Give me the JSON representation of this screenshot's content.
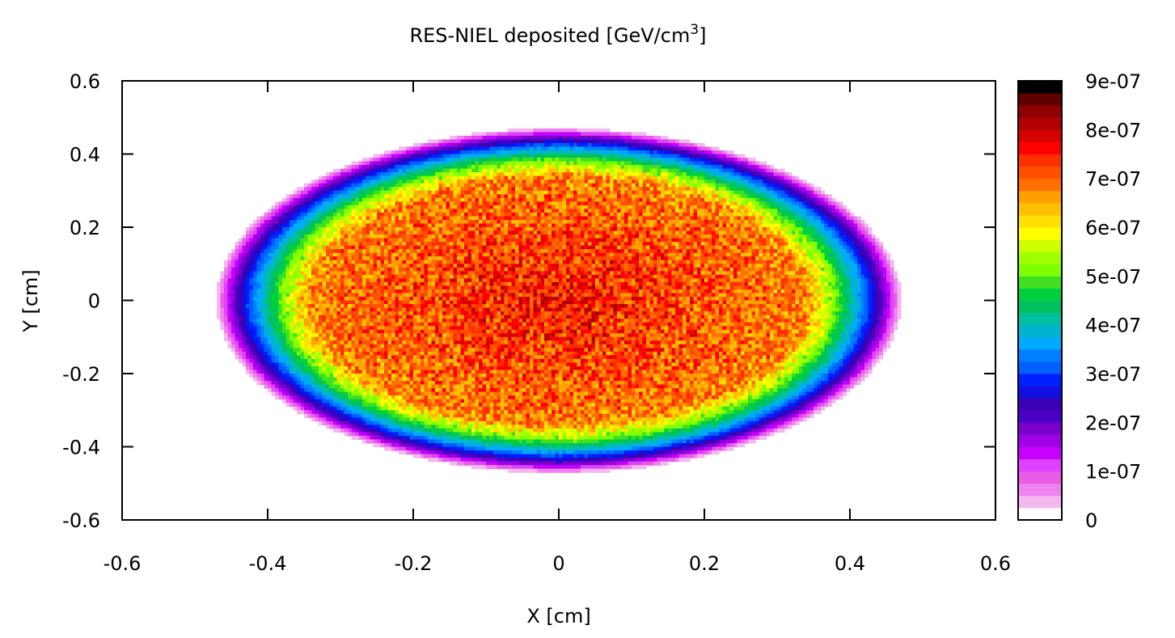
{
  "chart_data": {
    "type": "heatmap",
    "title": "RES-NIEL deposited [GeV/cm",
    "title_superscript": "3",
    "title_suffix": "]",
    "xlabel": "X [cm]",
    "ylabel": "Y [cm]",
    "xlim": [
      -0.6,
      0.6
    ],
    "ylim": [
      -0.6,
      0.6
    ],
    "xticks": [
      "-0.6",
      "-0.4",
      "-0.2",
      "0",
      "0.2",
      "0.4",
      "0.6"
    ],
    "yticks": [
      "0.6",
      "0.4",
      "0.2",
      "0",
      "-0.2",
      "-0.4",
      "-0.6"
    ],
    "colorbar": {
      "range": [
        0,
        9e-07
      ],
      "ticks": [
        "9e-07",
        "8e-07",
        "7e-07",
        "6e-07",
        "5e-07",
        "4e-07",
        "3e-07",
        "2e-07",
        "1e-07",
        "0"
      ],
      "colors": [
        "#ffffff",
        "#f4b8f0",
        "#ee82ee",
        "#e85ce8",
        "#e040ff",
        "#c800ff",
        "#9f00e6",
        "#7a00cc",
        "#4b00c8",
        "#3c00b4",
        "#1010e0",
        "#0020ff",
        "#0060ff",
        "#0080ff",
        "#00aaff",
        "#00b4d0",
        "#00c0a0",
        "#00c060",
        "#00d040",
        "#40e020",
        "#80ff00",
        "#a0ff00",
        "#d0ff00",
        "#ffff00",
        "#ffe000",
        "#ffc000",
        "#ffa000",
        "#ff7000",
        "#ff5000",
        "#ff3000",
        "#ff0000",
        "#d80000",
        "#b00000",
        "#900000",
        "#600000",
        "#000000"
      ]
    },
    "distribution": {
      "shape": "ellipse",
      "center": [
        0.0,
        0.0
      ],
      "semi_axis_x": 0.47,
      "semi_axis_y": 0.47,
      "peak_value": 7.6e-07,
      "plateau_value": 6.8e-07,
      "noise_fraction": 0.1
    }
  }
}
